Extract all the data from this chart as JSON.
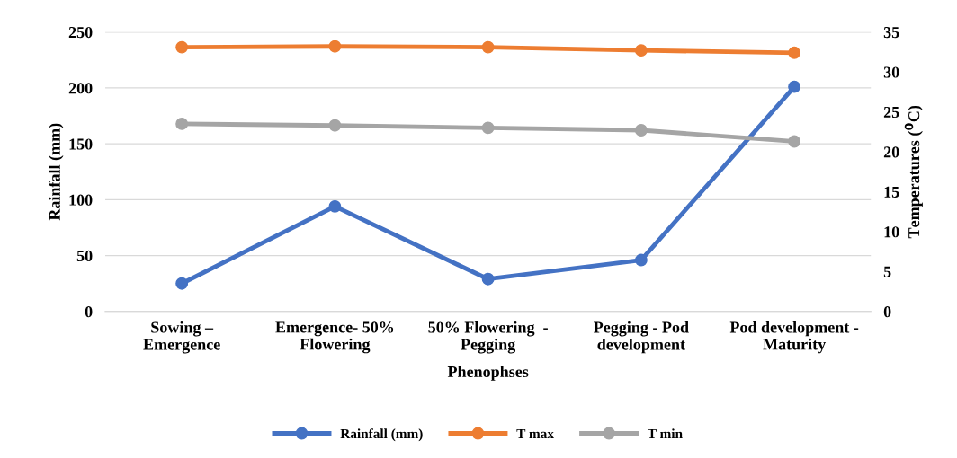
{
  "chart_data": {
    "type": "line",
    "xlabel": "Phenophses",
    "ylabel": "Rainfall (mm)",
    "y2label": "Temperatures ($^{0}$C)",
    "categories": [
      "Sowing –\nEmergence",
      "Emergence- 50%\nFlowering",
      "50% Flowering  -\nPegging",
      "Pegging - Pod\ndevelopment",
      "Pod development -\nMaturity"
    ],
    "series": [
      {
        "name": "Rainfall (mm)",
        "color": "#4472c4",
        "values": [
          25,
          94,
          29,
          46,
          201
        ]
      },
      {
        "name": "T max",
        "color": "#ed7d31",
        "axis": "y2",
        "values": [
          33.1,
          33.2,
          33.1,
          32.7,
          32.4
        ]
      },
      {
        "name": "T min",
        "color": "#a5a5a5",
        "axis": "y2",
        "values": [
          23.5,
          23.3,
          23.0,
          22.7,
          21.3
        ]
      }
    ],
    "ylim": [
      0,
      250
    ],
    "yticks": [
      0,
      50,
      100,
      150,
      200,
      250
    ],
    "y2lim": [
      0,
      35
    ],
    "y2ticks": [
      0,
      5,
      10,
      15,
      20,
      25,
      30,
      35
    ],
    "grid": "y",
    "legend": "bottom",
    "marker": "circle",
    "line_style": "solid"
  }
}
